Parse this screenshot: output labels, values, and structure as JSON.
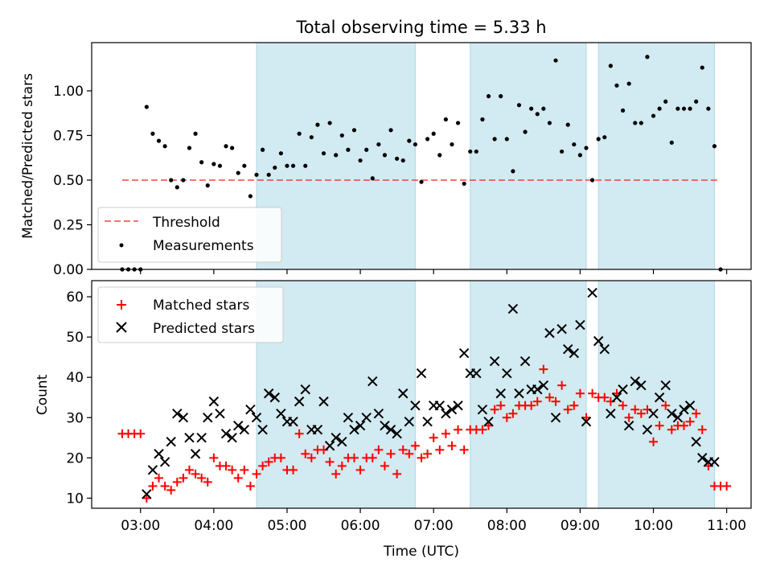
{
  "title": "Total observing time = 5.33 h",
  "colors": {
    "shade": "#add8e6",
    "threshold": "#ff0000",
    "measurement": "#000000",
    "matched": "#ff0000",
    "predicted": "#000000"
  },
  "chart_data": [
    {
      "type": "scatter",
      "title": "Total observing time = 5.33 h",
      "xlabel": "",
      "ylabel": "Matched/Predicted stars",
      "xlim": [
        "02:20",
        "11:20"
      ],
      "ylim": [
        0,
        1.27
      ],
      "yticks": [
        0.0,
        0.25,
        0.5,
        0.75,
        1.0
      ],
      "ytick_labels": [
        "0.00",
        "0.25",
        "0.50",
        "0.75",
        "1.00"
      ],
      "grid": false,
      "legend_position": "lower-left",
      "shaded_intervals": [
        [
          "04:35",
          "06:45"
        ],
        [
          "07:30",
          "09:05"
        ],
        [
          "09:15",
          "10:50"
        ]
      ],
      "series": [
        {
          "name": "Threshold",
          "kind": "line",
          "style": "dashed",
          "x": [
            "02:45",
            "10:55"
          ],
          "y": [
            0.5,
            0.5
          ]
        },
        {
          "name": "Measurements",
          "kind": "points",
          "x": [
            "02:45",
            "02:50",
            "02:55",
            "03:00",
            "03:05",
            "03:10",
            "03:15",
            "03:20",
            "03:25",
            "03:30",
            "03:35",
            "03:40",
            "03:45",
            "03:50",
            "03:55",
            "04:00",
            "04:05",
            "04:10",
            "04:15",
            "04:20",
            "04:25",
            "04:30",
            "04:35",
            "04:40",
            "04:45",
            "04:50",
            "04:55",
            "05:00",
            "05:05",
            "05:10",
            "05:15",
            "05:20",
            "05:25",
            "05:30",
            "05:35",
            "05:40",
            "05:45",
            "05:50",
            "05:55",
            "06:00",
            "06:05",
            "06:10",
            "06:15",
            "06:20",
            "06:25",
            "06:30",
            "06:35",
            "06:40",
            "06:45",
            "06:50",
            "06:55",
            "07:00",
            "07:05",
            "07:10",
            "07:15",
            "07:20",
            "07:25",
            "07:30",
            "07:35",
            "07:40",
            "07:45",
            "07:50",
            "07:55",
            "08:00",
            "08:05",
            "08:10",
            "08:15",
            "08:20",
            "08:25",
            "08:30",
            "08:35",
            "08:40",
            "08:45",
            "08:50",
            "08:55",
            "09:00",
            "09:05",
            "09:10",
            "09:15",
            "09:20",
            "09:25",
            "09:30",
            "09:35",
            "09:40",
            "09:45",
            "09:50",
            "09:55",
            "10:00",
            "10:05",
            "10:10",
            "10:15",
            "10:20",
            "10:25",
            "10:30",
            "10:35",
            "10:40",
            "10:45",
            "10:50",
            "10:55"
          ],
          "y": [
            0.0,
            0.0,
            0.0,
            0.0,
            0.91,
            0.76,
            0.72,
            0.69,
            0.5,
            0.46,
            0.5,
            0.68,
            0.76,
            0.6,
            0.47,
            0.59,
            0.58,
            0.69,
            0.68,
            0.54,
            0.58,
            0.41,
            0.53,
            0.67,
            0.53,
            0.57,
            0.65,
            0.58,
            0.58,
            0.76,
            0.58,
            0.74,
            0.81,
            0.65,
            0.82,
            0.64,
            0.75,
            0.67,
            0.78,
            0.61,
            0.67,
            0.51,
            0.7,
            0.64,
            0.78,
            0.62,
            0.61,
            0.72,
            0.7,
            0.49,
            0.73,
            0.76,
            0.64,
            0.84,
            0.7,
            0.82,
            0.48,
            0.66,
            0.66,
            0.84,
            0.97,
            0.73,
            0.97,
            0.73,
            0.55,
            0.92,
            0.77,
            0.9,
            0.87,
            0.9,
            0.82,
            1.17,
            0.66,
            0.81,
            0.7,
            0.64,
            0.68,
            0.5,
            0.73,
            0.74,
            1.14,
            1.03,
            0.89,
            1.04,
            0.82,
            0.82,
            1.19,
            0.86,
            0.9,
            0.94,
            0.71,
            0.9,
            0.9,
            0.9,
            0.94,
            1.13,
            0.9,
            0.69,
            0.0
          ]
        }
      ]
    },
    {
      "type": "scatter",
      "xlabel": "Time (UTC)",
      "ylabel": "Count",
      "xlim": [
        "02:20",
        "11:20"
      ],
      "ylim": [
        7.5,
        64
      ],
      "yticks": [
        10,
        20,
        30,
        40,
        50,
        60
      ],
      "xticks": [
        "03:00",
        "04:00",
        "05:00",
        "06:00",
        "07:00",
        "08:00",
        "09:00",
        "10:00",
        "11:00"
      ],
      "grid": false,
      "legend_position": "upper-left",
      "shaded_intervals": [
        [
          "04:35",
          "06:45"
        ],
        [
          "07:30",
          "09:05"
        ],
        [
          "09:15",
          "10:50"
        ]
      ],
      "series": [
        {
          "name": "Matched stars",
          "marker": "plus",
          "x": [
            "02:45",
            "02:50",
            "02:55",
            "03:00",
            "03:05",
            "03:10",
            "03:15",
            "03:20",
            "03:25",
            "03:30",
            "03:35",
            "03:40",
            "03:45",
            "03:50",
            "03:55",
            "04:00",
            "04:05",
            "04:10",
            "04:15",
            "04:20",
            "04:25",
            "04:30",
            "04:35",
            "04:40",
            "04:45",
            "04:50",
            "04:55",
            "05:00",
            "05:05",
            "05:10",
            "05:15",
            "05:20",
            "05:25",
            "05:30",
            "05:35",
            "05:40",
            "05:45",
            "05:50",
            "05:55",
            "06:00",
            "06:05",
            "06:10",
            "06:15",
            "06:20",
            "06:25",
            "06:30",
            "06:35",
            "06:40",
            "06:45",
            "06:50",
            "06:55",
            "07:00",
            "07:05",
            "07:10",
            "07:15",
            "07:20",
            "07:25",
            "07:30",
            "07:35",
            "07:40",
            "07:45",
            "07:50",
            "07:55",
            "08:00",
            "08:05",
            "08:10",
            "08:15",
            "08:20",
            "08:25",
            "08:30",
            "08:35",
            "08:40",
            "08:45",
            "08:50",
            "08:55",
            "09:00",
            "09:05",
            "09:10",
            "09:15",
            "09:20",
            "09:25",
            "09:30",
            "09:35",
            "09:40",
            "09:45",
            "09:50",
            "09:55",
            "10:00",
            "10:05",
            "10:10",
            "10:15",
            "10:20",
            "10:25",
            "10:30",
            "10:35",
            "10:40",
            "10:45",
            "10:50",
            "10:55",
            "11:00"
          ],
          "y": [
            26,
            26,
            26,
            26,
            10,
            13,
            15,
            13,
            12,
            14,
            15,
            17,
            16,
            15,
            14,
            20,
            18,
            18,
            17,
            15,
            17,
            13,
            16,
            18,
            19,
            20,
            20,
            17,
            17,
            26,
            21,
            20,
            22,
            22,
            19,
            16,
            18,
            20,
            20,
            17,
            20,
            20,
            22,
            18,
            21,
            16,
            22,
            21,
            23,
            20,
            21,
            25,
            22,
            26,
            23,
            27,
            22,
            27,
            27,
            27,
            28,
            32,
            33,
            30,
            31,
            33,
            33,
            33,
            34,
            42,
            35,
            34,
            38,
            32,
            33,
            36,
            30,
            36,
            35,
            35,
            34,
            36,
            33,
            30,
            32,
            31,
            32,
            24,
            28,
            33,
            27,
            28,
            28,
            29,
            31,
            27,
            18,
            13,
            13,
            13
          ]
        },
        {
          "name": "Predicted stars",
          "marker": "x",
          "x": [
            "03:05",
            "03:10",
            "03:15",
            "03:20",
            "03:25",
            "03:30",
            "03:35",
            "03:40",
            "03:45",
            "03:50",
            "03:55",
            "04:00",
            "04:05",
            "04:10",
            "04:15",
            "04:20",
            "04:25",
            "04:30",
            "04:35",
            "04:40",
            "04:45",
            "04:50",
            "04:55",
            "05:00",
            "05:05",
            "05:10",
            "05:15",
            "05:20",
            "05:25",
            "05:30",
            "05:35",
            "05:40",
            "05:45",
            "05:50",
            "05:55",
            "06:00",
            "06:05",
            "06:10",
            "06:15",
            "06:20",
            "06:25",
            "06:30",
            "06:35",
            "06:40",
            "06:45",
            "06:50",
            "06:55",
            "07:00",
            "07:05",
            "07:10",
            "07:15",
            "07:20",
            "07:25",
            "07:30",
            "07:35",
            "07:40",
            "07:45",
            "07:50",
            "07:55",
            "08:00",
            "08:05",
            "08:10",
            "08:15",
            "08:20",
            "08:25",
            "08:30",
            "08:35",
            "08:40",
            "08:45",
            "08:50",
            "08:55",
            "09:00",
            "09:05",
            "09:10",
            "09:15",
            "09:20",
            "09:25",
            "09:30",
            "09:35",
            "09:40",
            "09:45",
            "09:50",
            "09:55",
            "10:00",
            "10:05",
            "10:10",
            "10:15",
            "10:20",
            "10:25",
            "10:30",
            "10:35",
            "10:40",
            "10:45",
            "10:50"
          ],
          "y": [
            11,
            17,
            21,
            19,
            24,
            31,
            30,
            25,
            21,
            25,
            30,
            34,
            31,
            26,
            25,
            28,
            27,
            32,
            30,
            27,
            36,
            35,
            31,
            29,
            29,
            34,
            37,
            27,
            27,
            34,
            23,
            25,
            24,
            30,
            27,
            28,
            30,
            39,
            31,
            28,
            27,
            26,
            36,
            29,
            33,
            41,
            29,
            33,
            33,
            31,
            32,
            33,
            46,
            41,
            41,
            32,
            29,
            44,
            36,
            41,
            57,
            36,
            44,
            37,
            37,
            38,
            51,
            30,
            52,
            47,
            46,
            53,
            29,
            61,
            49,
            47,
            31,
            35,
            37,
            28,
            39,
            38,
            27,
            31,
            35,
            38,
            31,
            30,
            32,
            33,
            24,
            20,
            19,
            19
          ]
        }
      ]
    }
  ]
}
